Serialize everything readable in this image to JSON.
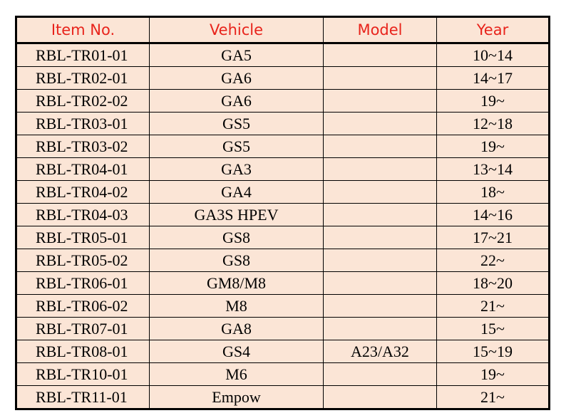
{
  "table": {
    "headers": [
      "Item No.",
      "Vehicle",
      "Model",
      "Year"
    ],
    "rows": [
      [
        "RBL-TR01-01",
        "GA5",
        "",
        "10~14"
      ],
      [
        "RBL-TR02-01",
        "GA6",
        "",
        "14~17"
      ],
      [
        "RBL-TR02-02",
        "GA6",
        "",
        "19~"
      ],
      [
        "RBL-TR03-01",
        "GS5",
        "",
        "12~18"
      ],
      [
        "RBL-TR03-02",
        "GS5",
        "",
        "19~"
      ],
      [
        "RBL-TR04-01",
        "GA3",
        "",
        "13~14"
      ],
      [
        "RBL-TR04-02",
        "GA4",
        "",
        "18~"
      ],
      [
        "RBL-TR04-03",
        "GA3S HPEV",
        "",
        "14~16"
      ],
      [
        "RBL-TR05-01",
        "GS8",
        "",
        "17~21"
      ],
      [
        "RBL-TR05-02",
        "GS8",
        "",
        "22~"
      ],
      [
        "RBL-TR06-01",
        "GM8/M8",
        "",
        "18~20"
      ],
      [
        "RBL-TR06-02",
        "M8",
        "",
        "21~"
      ],
      [
        "RBL-TR07-01",
        "GA8",
        "",
        "15~"
      ],
      [
        "RBL-TR08-01",
        "GS4",
        "A23/A32",
        "15~19"
      ],
      [
        "RBL-TR10-01",
        "M6",
        "",
        "19~"
      ],
      [
        "RBL-TR11-01",
        "Empow",
        "",
        "21~"
      ]
    ]
  },
  "colors": {
    "header_text": "#e8231b",
    "table_background": "#fbe5d6",
    "border": "#000000"
  }
}
